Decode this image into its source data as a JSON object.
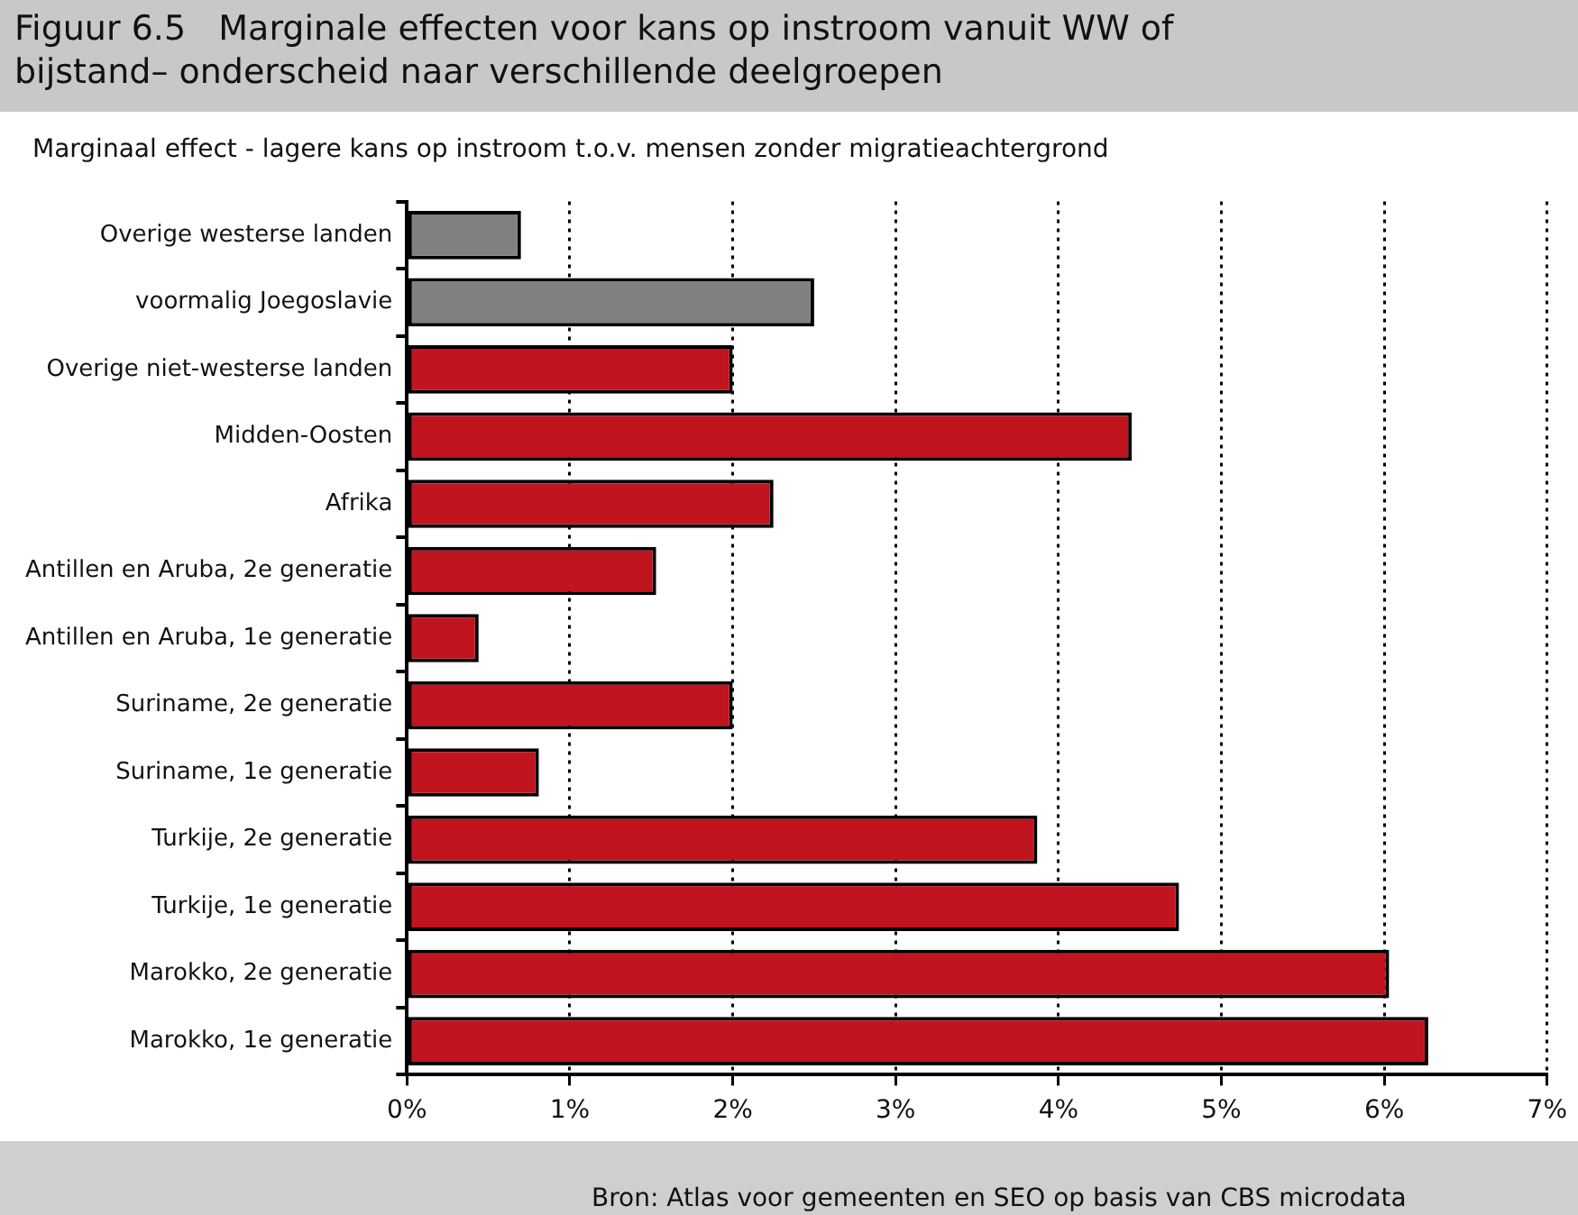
{
  "chart_data": {
    "type": "bar",
    "orientation": "horizontal",
    "title": "Figuur 6.5   Marginale effecten voor kans op instroom vanuit WW of bijstand– onderscheid naar verschillende deelgroepen",
    "subtitle": "Marginaal effect  - lagere kans op instroom t.o.v. mensen zonder migratieachtergrond",
    "categories": [
      "Overige westerse landen",
      "voormalig Joegoslavie",
      "Overige niet-westerse landen",
      "Midden-Oosten",
      "Afrika",
      "Antillen en Aruba, 2e generatie",
      "Antillen en Aruba, 1e generatie",
      "Suriname, 2e generatie",
      "Suriname, 1e generatie",
      "Turkije, 2e generatie",
      "Turkije, 1e generatie",
      "Marokko, 2e generatie",
      "Marokko, 1e generatie"
    ],
    "values": [
      0.7,
      2.5,
      2.0,
      4.45,
      2.25,
      1.53,
      0.44,
      2.0,
      0.81,
      3.87,
      4.74,
      6.03,
      6.27
    ],
    "colors": [
      "#808080",
      "#808080",
      "#c0141f",
      "#c0141f",
      "#c0141f",
      "#c0141f",
      "#c0141f",
      "#c0141f",
      "#c0141f",
      "#c0141f",
      "#c0141f",
      "#c0141f",
      "#c0141f"
    ],
    "xlim": [
      0,
      7
    ],
    "xticks": [
      {
        "value": 0,
        "label": "0%"
      },
      {
        "value": 1,
        "label": "1%"
      },
      {
        "value": 2,
        "label": "2%"
      },
      {
        "value": 3,
        "label": "3%"
      },
      {
        "value": 4,
        "label": "4%"
      },
      {
        "value": 5,
        "label": "5%"
      },
      {
        "value": 6,
        "label": "6%"
      },
      {
        "value": 7,
        "label": "7%"
      }
    ],
    "grid": "x",
    "line_style": "dotted",
    "annotations": [
      "Bron: Atlas voor gemeenten en SEO op basis van CBS microdata"
    ]
  }
}
